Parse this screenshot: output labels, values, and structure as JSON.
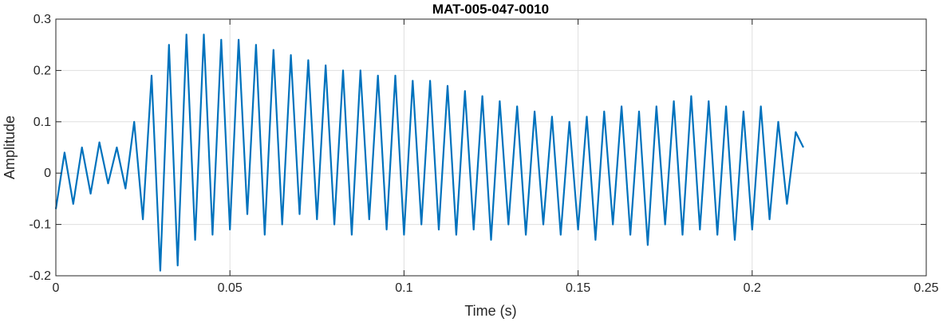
{
  "chart_data": {
    "type": "line",
    "title": "MAT-005-047-0010",
    "xlabel": "Time (s)",
    "ylabel": "Amplitude",
    "xlim": [
      0,
      0.25
    ],
    "ylim": [
      -0.2,
      0.3
    ],
    "x_ticks": [
      0,
      0.05,
      0.1,
      0.15,
      0.2,
      0.25
    ],
    "x_tick_labels": [
      "0",
      "0.05",
      "0.1",
      "0.15",
      "0.2",
      "0.25"
    ],
    "y_ticks": [
      -0.2,
      -0.1,
      0,
      0.1,
      0.2,
      0.3
    ],
    "y_tick_labels": [
      "-0.2",
      "-0.1",
      "0",
      "0.1",
      "0.2",
      "0.3"
    ],
    "grid": true,
    "line_color": "#0072BD",
    "series": [
      {
        "values_x_start": 0,
        "values_x_end": 0.2147,
        "x": [
          0,
          0.0025,
          0.005,
          0.0075,
          0.01,
          0.0125,
          0.015,
          0.0175,
          0.02,
          0.0225,
          0.025,
          0.0275,
          0.03,
          0.0325,
          0.035,
          0.0375,
          0.04,
          0.0425,
          0.045,
          0.0475,
          0.05,
          0.0525,
          0.055,
          0.0575,
          0.06,
          0.0625,
          0.065,
          0.0675,
          0.07,
          0.0725,
          0.075,
          0.0775,
          0.08,
          0.0825,
          0.085,
          0.0875,
          0.09,
          0.0925,
          0.095,
          0.0975,
          0.1,
          0.1025,
          0.105,
          0.1075,
          0.11,
          0.1125,
          0.115,
          0.1175,
          0.12,
          0.1225,
          0.125,
          0.1275,
          0.13,
          0.1325,
          0.135,
          0.1375,
          0.14,
          0.1425,
          0.145,
          0.1475,
          0.15,
          0.1525,
          0.155,
          0.1575,
          0.16,
          0.1625,
          0.165,
          0.1675,
          0.17,
          0.1725,
          0.175,
          0.1775,
          0.18,
          0.1825,
          0.185,
          0.1875,
          0.19,
          0.1925,
          0.195,
          0.1975,
          0.2,
          0.2025,
          0.205,
          0.2075,
          0.21,
          0.2125,
          0.2147
        ],
        "y": [
          -0.07,
          0.04,
          -0.06,
          0.05,
          -0.04,
          0.06,
          -0.02,
          0.05,
          -0.03,
          0.1,
          -0.09,
          0.19,
          -0.19,
          0.25,
          -0.18,
          0.27,
          -0.13,
          0.27,
          -0.12,
          0.26,
          -0.11,
          0.26,
          -0.08,
          0.25,
          -0.12,
          0.24,
          -0.1,
          0.23,
          -0.08,
          0.22,
          -0.09,
          0.21,
          -0.1,
          0.2,
          -0.12,
          0.2,
          -0.09,
          0.19,
          -0.11,
          0.19,
          -0.12,
          0.18,
          -0.1,
          0.18,
          -0.11,
          0.17,
          -0.12,
          0.16,
          -0.11,
          0.15,
          -0.13,
          0.14,
          -0.1,
          0.13,
          -0.12,
          0.12,
          -0.1,
          0.11,
          -0.12,
          0.1,
          -0.11,
          0.11,
          -0.13,
          0.12,
          -0.1,
          0.13,
          -0.12,
          0.12,
          -0.14,
          0.13,
          -0.1,
          0.14,
          -0.12,
          0.15,
          -0.11,
          0.14,
          -0.12,
          0.13,
          -0.13,
          0.12,
          -0.11,
          0.13,
          -0.09,
          0.1,
          -0.06,
          0.08,
          0.05
        ]
      }
    ]
  }
}
